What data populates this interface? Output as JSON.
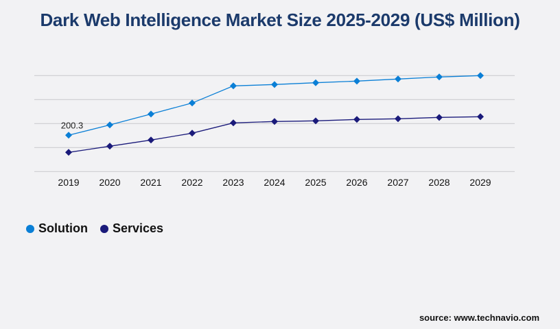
{
  "chart_data": {
    "type": "line",
    "title": "Dark Web Intelligence Market Size 2025-2029 (US$ Million)",
    "categories": [
      "2019",
      "2020",
      "2021",
      "2022",
      "2023",
      "2024",
      "2025",
      "2026",
      "2027",
      "2028",
      "2029"
    ],
    "series": [
      {
        "name": "Solution",
        "color": "#0a7fd6",
        "values": [
          200.3,
          257.0,
          317.4,
          377.9,
          472.4,
          479.9,
          489.8,
          498.8,
          510.2,
          521.5,
          529.1
        ]
      },
      {
        "name": "Services",
        "color": "#1a1a7a",
        "values": [
          105.8,
          139.8,
          173.8,
          211.6,
          268.3,
          275.9,
          279.6,
          287.2,
          291.0,
          298.5,
          302.3
        ]
      }
    ],
    "data_labels": [
      {
        "series": "Solution",
        "category": "2019",
        "text": "200.3"
      }
    ],
    "ylim": [
      0,
      529.1
    ],
    "y_gridlines": 5,
    "grid": true,
    "y_tick_labels_shown": false,
    "legend_position": "bottom-left",
    "source": "source: www.technavio.com"
  }
}
